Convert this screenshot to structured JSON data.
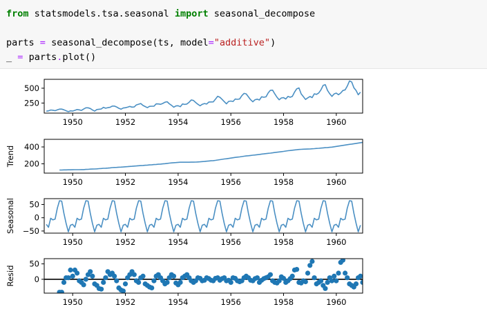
{
  "code": {
    "line1": {
      "from_kw": "from",
      "module": "statsmodels.tsa.seasonal",
      "import_kw": "import",
      "name": "seasonal_decompose"
    },
    "line2": {
      "var": "parts",
      "eq": "=",
      "call_open": "seasonal_decompose(ts, model",
      "kw_eq": "=",
      "arg_str": "\"additive\"",
      "call_close": ")"
    },
    "line3": {
      "var": "_",
      "eq": "=",
      "obj": "parts",
      "dot": ".",
      "method": "plot()"
    }
  },
  "colors": {
    "line": "#4a8fc3",
    "marker": "#1f77b4",
    "zero_line": "#000000"
  },
  "chart_data": [
    {
      "type": "line",
      "title": "",
      "ylabel": "",
      "xlim": [
        1948.92,
        1961.0
      ],
      "ylim": [
        80,
        650
      ],
      "yticks": [
        250,
        500
      ],
      "xticks": [
        1950,
        1952,
        1954,
        1956,
        1958,
        1960
      ],
      "series": [
        {
          "x_start": 1949.0,
          "x_step": 0.0833333,
          "values": [
            112,
            118,
            132,
            129,
            121,
            135,
            148,
            148,
            136,
            119,
            104,
            118,
            115,
            126,
            141,
            135,
            125,
            149,
            170,
            170,
            158,
            133,
            114,
            140,
            145,
            150,
            178,
            163,
            172,
            178,
            199,
            199,
            184,
            162,
            146,
            166,
            171,
            180,
            193,
            181,
            183,
            218,
            230,
            242,
            209,
            191,
            172,
            194,
            196,
            196,
            236,
            235,
            229,
            243,
            264,
            272,
            237,
            211,
            180,
            201,
            204,
            188,
            235,
            227,
            234,
            264,
            302,
            293,
            259,
            229,
            203,
            229,
            242,
            233,
            267,
            269,
            270,
            315,
            364,
            347,
            312,
            274,
            237,
            278,
            284,
            277,
            317,
            313,
            318,
            374,
            413,
            405,
            355,
            306,
            271,
            306,
            315,
            301,
            356,
            348,
            355,
            422,
            465,
            467,
            404,
            347,
            305,
            336,
            340,
            318,
            362,
            348,
            363,
            435,
            491,
            505,
            404,
            359,
            310,
            337,
            360,
            342,
            406,
            396,
            420,
            472,
            548,
            559,
            463,
            407,
            362,
            405,
            417,
            391,
            419,
            461,
            472,
            535,
            622,
            606,
            508,
            461,
            390,
            432
          ]
        }
      ]
    },
    {
      "type": "line",
      "title": "",
      "ylabel": "Trend",
      "xlim": [
        1948.92,
        1961.0
      ],
      "ylim": [
        90,
        490
      ],
      "yticks": [
        200,
        400
      ],
      "xticks": [
        1950,
        1952,
        1954,
        1956,
        1958,
        1960
      ],
      "series": [
        {
          "x_start": 1949.5,
          "x_step": 0.0833333,
          "values": [
            127,
            127,
            128,
            128,
            129,
            129,
            130,
            131,
            131,
            131,
            132,
            132,
            134,
            135,
            137,
            138,
            139,
            141,
            143,
            145,
            147,
            148,
            150,
            152,
            155,
            157,
            158,
            160,
            161,
            163,
            165,
            167,
            169,
            171,
            173,
            175,
            177,
            179,
            181,
            183,
            185,
            187,
            189,
            191,
            193,
            195,
            197,
            199,
            202,
            205,
            208,
            211,
            213,
            215,
            217,
            219,
            219,
            219,
            219,
            219,
            220,
            220,
            221,
            222,
            224,
            226,
            228,
            231,
            234,
            236,
            238,
            241,
            245,
            249,
            253,
            257,
            260,
            264,
            268,
            272,
            276,
            279,
            282,
            286,
            290,
            293,
            296,
            299,
            302,
            305,
            308,
            311,
            315,
            318,
            321,
            324,
            327,
            330,
            334,
            337,
            341,
            344,
            347,
            351,
            355,
            358,
            361,
            364,
            367,
            370,
            372,
            373,
            374,
            375,
            376,
            378,
            380,
            382,
            384,
            386,
            389,
            391,
            393,
            395,
            398,
            402,
            406,
            410,
            414,
            418,
            422,
            426,
            430,
            434,
            438,
            442,
            446,
            450,
            454,
            458,
            462,
            466,
            470,
            474,
            477,
            480,
            483,
            486,
            489
          ]
        }
      ]
    },
    {
      "type": "line",
      "title": "",
      "ylabel": "Seasonal",
      "xlim": [
        1948.92,
        1961.0
      ],
      "ylim": [
        -58,
        72
      ],
      "yticks": [
        -50,
        0,
        50
      ],
      "xticks": [
        1950,
        1952,
        1954,
        1956,
        1958,
        1960
      ],
      "series": [
        {
          "x_start": 1949.0,
          "x_step": 0.0833333,
          "values": [
            -25,
            -36,
            -2,
            -8,
            -5,
            36,
            64,
            63,
            17,
            -21,
            -53,
            -28,
            -25,
            -36,
            -2,
            -8,
            -5,
            36,
            64,
            63,
            17,
            -21,
            -53,
            -28,
            -25,
            -36,
            -2,
            -8,
            -5,
            36,
            64,
            63,
            17,
            -21,
            -53,
            -28,
            -25,
            -36,
            -2,
            -8,
            -5,
            36,
            64,
            63,
            17,
            -21,
            -53,
            -28,
            -25,
            -36,
            -2,
            -8,
            -5,
            36,
            64,
            63,
            17,
            -21,
            -53,
            -28,
            -25,
            -36,
            -2,
            -8,
            -5,
            36,
            64,
            63,
            17,
            -21,
            -53,
            -28,
            -25,
            -36,
            -2,
            -8,
            -5,
            36,
            64,
            63,
            17,
            -21,
            -53,
            -28,
            -25,
            -36,
            -2,
            -8,
            -5,
            36,
            64,
            63,
            17,
            -21,
            -53,
            -28,
            -25,
            -36,
            -2,
            -8,
            -5,
            36,
            64,
            63,
            17,
            -21,
            -53,
            -28,
            -25,
            -36,
            -2,
            -8,
            -5,
            36,
            64,
            63,
            17,
            -21,
            -53,
            -28,
            -25,
            -36,
            -2,
            -8,
            -5,
            36,
            64,
            63,
            17,
            -21,
            -53,
            -28,
            -25,
            -36,
            -2,
            -8,
            -5,
            36,
            64,
            63,
            17,
            -21,
            -53,
            -28
          ]
        }
      ]
    },
    {
      "type": "scatter",
      "title": "",
      "ylabel": "Resid",
      "xlim": [
        1948.92,
        1961.0
      ],
      "ylim": [
        -45,
        67
      ],
      "yticks": [
        0,
        50
      ],
      "xticks": [
        1950,
        1952,
        1954,
        1956,
        1958,
        1960
      ],
      "zero_line": true,
      "series": [
        {
          "x_start": 1949.5,
          "x_step": 0.0833333,
          "values": [
            -42,
            -42,
            -10,
            5,
            5,
            30,
            10,
            30,
            20,
            -5,
            -10,
            -18,
            0,
            15,
            25,
            10,
            -15,
            -20,
            -30,
            -32,
            -10,
            5,
            25,
            15,
            20,
            10,
            -5,
            -28,
            -35,
            -38,
            -15,
            5,
            15,
            25,
            15,
            -5,
            -10,
            5,
            10,
            -15,
            -20,
            -25,
            -28,
            -5,
            10,
            15,
            5,
            -5,
            -15,
            -10,
            5,
            15,
            10,
            -12,
            -18,
            -10,
            5,
            10,
            15,
            5,
            -5,
            -10,
            -5,
            5,
            3,
            -5,
            -3,
            5,
            2,
            -3,
            -5,
            3,
            5,
            -3,
            2,
            5,
            -5,
            -3,
            -10,
            5,
            3,
            -5,
            -8,
            -5,
            5,
            10,
            5,
            -3,
            -5,
            2,
            5,
            -10,
            -3,
            2,
            5,
            8,
            15,
            -5,
            -10,
            -12,
            -5,
            8,
            3,
            -10,
            -5,
            2,
            10,
            30,
            32,
            -10,
            -12,
            -5,
            -8,
            20,
            45,
            58,
            5,
            -15,
            -10,
            -5,
            -20,
            -30,
            -10,
            5,
            -5,
            10,
            -5,
            20,
            55,
            62,
            20,
            5,
            -15,
            -20,
            -25,
            -15,
            5,
            10,
            -10,
            -20,
            -10,
            5,
            -30,
            -42
          ]
        }
      ]
    }
  ]
}
